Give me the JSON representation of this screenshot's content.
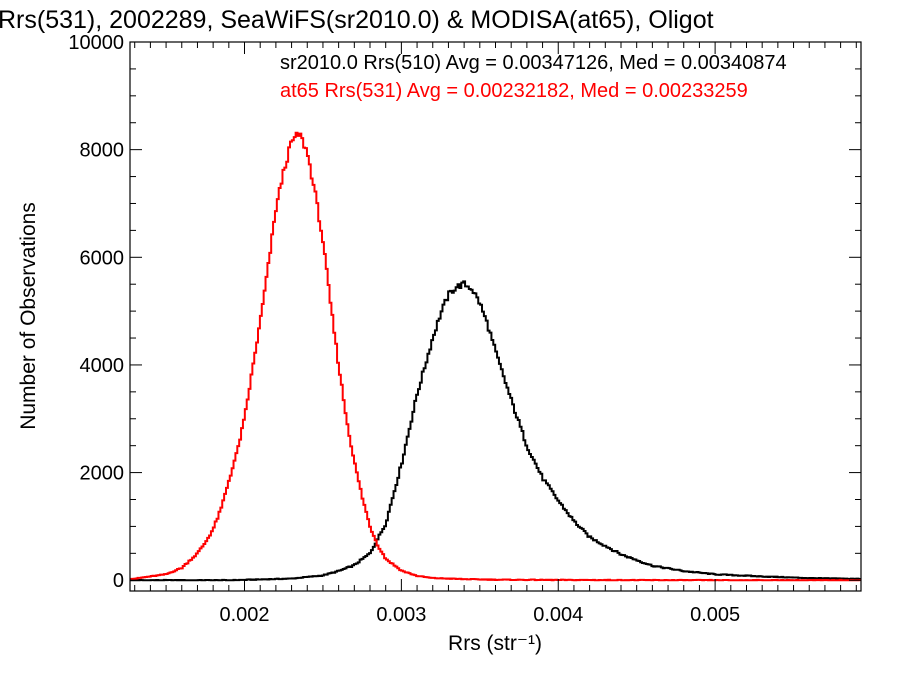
{
  "chart_data": {
    "type": "line",
    "title": "Rrs(531), 2002289, SeaWiFS(sr2010.0) & MODISA(at65), Oligot",
    "xlabel": "Rrs (str⁻¹)",
    "ylabel": "Number of Observations",
    "xlim": [
      0.00127,
      0.00593
    ],
    "ylim": [
      -200,
      10000
    ],
    "xticks": [
      0.002,
      0.003,
      0.004,
      0.005
    ],
    "xtick_labels": [
      "0.002",
      "0.003",
      "0.004",
      "0.005"
    ],
    "yticks": [
      0,
      2000,
      4000,
      6000,
      8000,
      10000
    ],
    "ytick_labels": [
      "0",
      "2000",
      "4000",
      "6000",
      "8000",
      "10000"
    ],
    "grid": false,
    "legend_placement": "top",
    "series": [
      {
        "name": "sr2010.0 Rrs(510) Avg = 0.00347126, Med = 0.00340874",
        "color": "#000000",
        "x": [
          0.0013,
          0.0019,
          0.0023,
          0.0025,
          0.0026,
          0.0027,
          0.0028,
          0.0029,
          0.003,
          0.0031,
          0.0032,
          0.00325,
          0.0033,
          0.00335,
          0.0034,
          0.00345,
          0.0035,
          0.00355,
          0.0036,
          0.0037,
          0.0038,
          0.0039,
          0.004,
          0.0041,
          0.0042,
          0.0044,
          0.0046,
          0.0048,
          0.005,
          0.0053,
          0.0056,
          0.0059
        ],
        "y": [
          0,
          0,
          30,
          90,
          170,
          280,
          500,
          1050,
          2150,
          3450,
          4500,
          4950,
          5300,
          5450,
          5500,
          5420,
          5150,
          4750,
          4250,
          3350,
          2500,
          1900,
          1480,
          1100,
          800,
          480,
          270,
          170,
          110,
          70,
          40,
          25
        ]
      },
      {
        "name": "at65 Rrs(531) Avg = 0.00232182, Med = 0.00233259",
        "color": "#ff0000",
        "x": [
          0.0013,
          0.0014,
          0.0015,
          0.0016,
          0.0017,
          0.00175,
          0.0018,
          0.00185,
          0.0019,
          0.00195,
          0.002,
          0.00205,
          0.0021,
          0.00215,
          0.0022,
          0.00225,
          0.0023,
          0.00235,
          0.0024,
          0.00245,
          0.0025,
          0.00255,
          0.0026,
          0.00265,
          0.0027,
          0.00275,
          0.0028,
          0.00285,
          0.0029,
          0.003,
          0.0031,
          0.0032,
          0.0034,
          0.0036,
          0.004,
          0.0045,
          0.005,
          0.0055,
          0.0059
        ],
        "y": [
          30,
          70,
          110,
          230,
          500,
          700,
          950,
          1320,
          1850,
          2350,
          3000,
          3900,
          4800,
          5800,
          6900,
          7600,
          8150,
          8300,
          7950,
          7200,
          6300,
          5100,
          4000,
          3000,
          2200,
          1550,
          1000,
          650,
          400,
          180,
          80,
          40,
          20,
          10,
          5,
          2,
          0,
          0,
          0
        ]
      }
    ]
  }
}
